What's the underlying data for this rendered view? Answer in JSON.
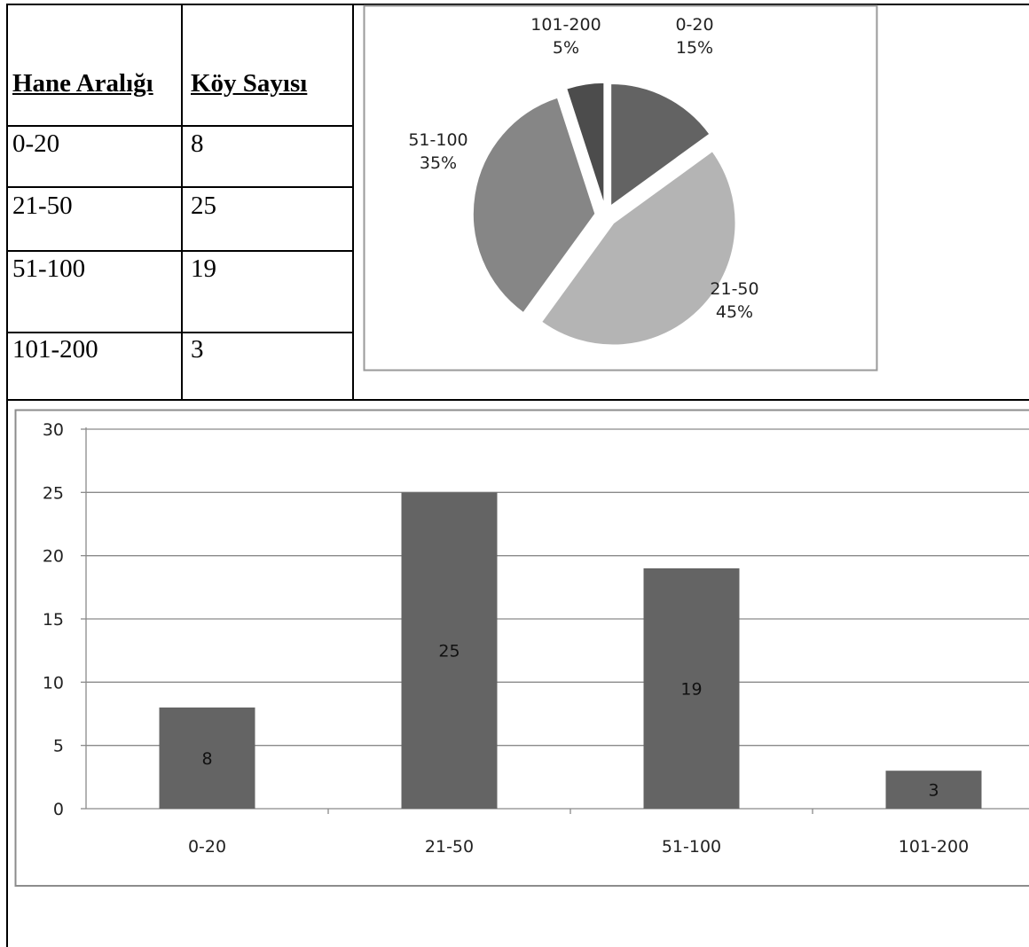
{
  "table": {
    "headers": [
      "Hane Aralığı",
      "Köy Sayısı"
    ],
    "rows": [
      [
        "0-20",
        "8"
      ],
      [
        "21-50",
        "25"
      ],
      [
        "51-100",
        "19"
      ],
      [
        "101-200",
        "3"
      ]
    ]
  },
  "chart_data": [
    {
      "type": "pie",
      "slices": [
        {
          "label": "0-20",
          "value": 15,
          "percent_label": "15%",
          "color": "#636363"
        },
        {
          "label": "21-50",
          "value": 45,
          "percent_label": "45%",
          "color": "#b4b4b4"
        },
        {
          "label": "51-100",
          "value": 35,
          "percent_label": "35%",
          "color": "#868686"
        },
        {
          "label": "101-200",
          "value": 5,
          "percent_label": "5%",
          "color": "#4c4c4c"
        }
      ],
      "exploded": true
    },
    {
      "type": "bar",
      "categories": [
        "0-20",
        "21-50",
        "51-100",
        "101-200"
      ],
      "values": [
        8,
        25,
        19,
        3
      ],
      "data_labels": [
        "8",
        "25",
        "19",
        "3"
      ],
      "ylim": [
        0,
        30
      ],
      "yticks": [
        "0",
        "5",
        "10",
        "15",
        "20",
        "25",
        "30"
      ],
      "grid": true,
      "bar_color": "#646464"
    }
  ]
}
